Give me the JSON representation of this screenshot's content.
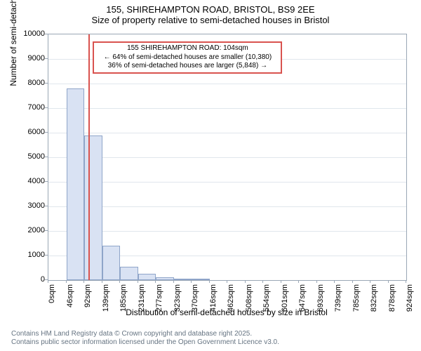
{
  "title": "155, SHIREHAMPTON ROAD, BRISTOL, BS9 2EE",
  "subtitle": "Size of property relative to semi-detached houses in Bristol",
  "yaxis_label": "Number of semi-detached properties",
  "xaxis_label": "Distribution of semi-detached houses by size in Bristol",
  "ylim": [
    0,
    10000
  ],
  "ytick_step": 1000,
  "xticks": [
    "0sqm",
    "46sqm",
    "92sqm",
    "139sqm",
    "185sqm",
    "231sqm",
    "277sqm",
    "323sqm",
    "370sqm",
    "416sqm",
    "462sqm",
    "508sqm",
    "554sqm",
    "601sqm",
    "647sqm",
    "693sqm",
    "739sqm",
    "785sqm",
    "832sqm",
    "878sqm",
    "924sqm"
  ],
  "bars": {
    "values": [
      0,
      7800,
      5900,
      1400,
      550,
      250,
      120,
      70,
      60
    ],
    "count": 20,
    "fill_color": "#d9e2f3",
    "border_color": "#8fa5c9"
  },
  "marker": {
    "value_sqm": 104,
    "max_sqm": 924,
    "color": "#d9534f"
  },
  "info_box": {
    "line1": "155 SHIREHAMPTON ROAD: 104sqm",
    "line2": "← 64% of semi-detached houses are smaller (10,380)",
    "line3": "36% of semi-detached houses are larger (5,848) →",
    "border_color": "#d9534f"
  },
  "footer": {
    "line1": "Contains HM Land Registry data © Crown copyright and database right 2025.",
    "line2": "Contains public sector information licensed under the Open Government Licence v3.0."
  },
  "chart": {
    "background_color": "#ffffff",
    "grid_color": "#e0e6ec",
    "axis_color": "#9aa7b5",
    "title_fontsize": 13,
    "label_fontsize": 12,
    "tick_fontsize": 11
  }
}
